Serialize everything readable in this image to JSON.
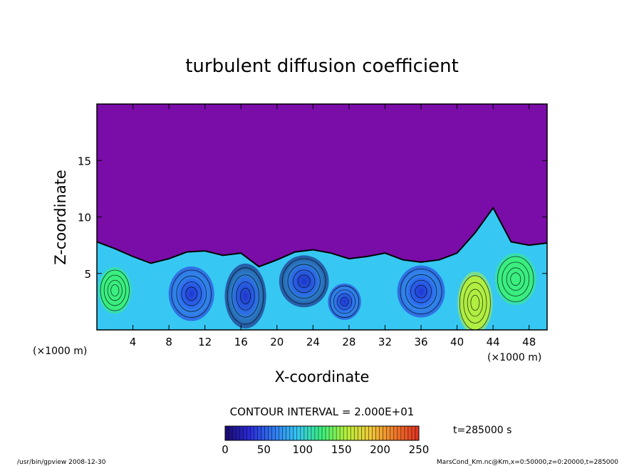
{
  "chart_data": {
    "type": "heatmap",
    "title": "turbulent diffusion coefficient",
    "xlabel": "X-coordinate",
    "ylabel": "Z-coordinate",
    "x_unit": "(×1000 m)",
    "y_unit": "(×1000 m)",
    "xlim": [
      0,
      50
    ],
    "ylim": [
      0,
      20
    ],
    "x_ticks": [
      4,
      8,
      12,
      16,
      20,
      24,
      28,
      32,
      36,
      40,
      44,
      48
    ],
    "y_ticks": [
      5,
      10,
      15
    ],
    "contour_interval_text": "CONTOUR INTERVAL = 2.000E+01",
    "time_text": "t=285000 s",
    "colorbar": {
      "min": 0,
      "max": 250,
      "ticks": [
        0,
        50,
        100,
        150,
        200,
        250
      ],
      "colors": [
        "#1a0a6e",
        "#2a2ad8",
        "#2f7af0",
        "#36c8f2",
        "#3bf07a",
        "#b6f03a",
        "#f0c83a",
        "#f07a2a",
        "#e03020"
      ]
    },
    "background_value_color": "#7a0ca8",
    "boundary_layer_profile": {
      "x": [
        0,
        2,
        4,
        6,
        8,
        10,
        12,
        14,
        16,
        18,
        20,
        22,
        24,
        26,
        28,
        30,
        32,
        34,
        36,
        38,
        40,
        42,
        44,
        46,
        48,
        50
      ],
      "top_z": [
        7.8,
        7.2,
        6.5,
        5.9,
        6.3,
        6.9,
        7.0,
        6.6,
        6.8,
        5.6,
        6.2,
        6.9,
        7.1,
        6.8,
        6.3,
        6.5,
        6.8,
        6.2,
        6.0,
        6.2,
        6.8,
        8.6,
        10.8,
        7.8,
        7.5,
        7.7
      ]
    },
    "eddies": [
      {
        "cx": 10.5,
        "cz": 3.2,
        "rx": 2.2,
        "rz": 2.1,
        "value": 20
      },
      {
        "cx": 16.5,
        "cz": 3.0,
        "rx": 2.0,
        "rz": 2.5,
        "value": 15
      },
      {
        "cx": 23.0,
        "cz": 4.3,
        "rx": 2.4,
        "rz": 2.0,
        "value": 15
      },
      {
        "cx": 27.5,
        "cz": 2.5,
        "rx": 1.6,
        "rz": 1.4,
        "value": 40
      },
      {
        "cx": 36.0,
        "cz": 3.4,
        "rx": 2.3,
        "rz": 2.0,
        "value": 35
      },
      {
        "cx": 42.0,
        "cz": 2.4,
        "rx": 1.7,
        "rz": 2.4,
        "value": 170
      },
      {
        "cx": 46.5,
        "cz": 4.5,
        "rx": 2.0,
        "rz": 2.0,
        "value": 110
      },
      {
        "cx": 2.0,
        "cz": 3.5,
        "rx": 1.6,
        "rz": 1.8,
        "value": 120
      }
    ],
    "footer_left": "/usr/bin/gpview   2008-12-30",
    "footer_right": "MarsCond_Km.nc@Km,x=0:50000,z=0:20000,t=285000"
  }
}
